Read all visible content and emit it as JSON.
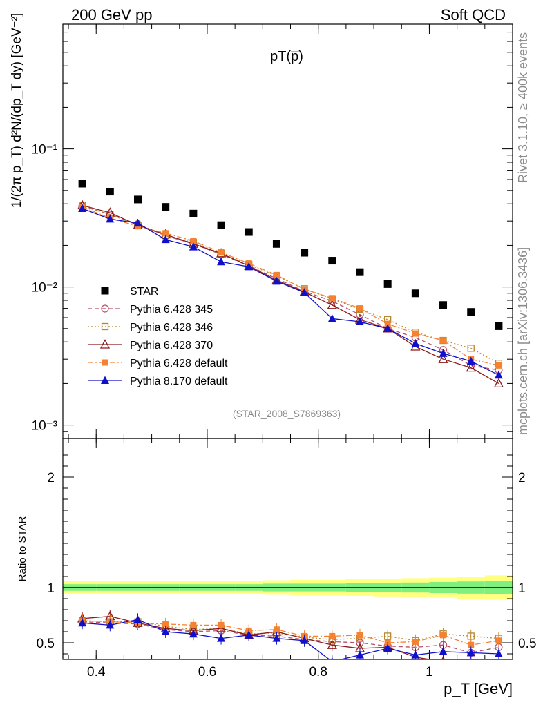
{
  "header": {
    "left": "200 GeV pp",
    "right": "Soft QCD"
  },
  "side_labels": {
    "version": "Rivet 3.1.10, ≥ 400k events",
    "source": "mcplots.cern.ch [arXiv:1306.3436]"
  },
  "chart_data": {
    "type": "scatter",
    "title": "pT(p̅)",
    "analysis_id": "(STAR_2008_S7869363)",
    "xlabel": "p_T [GeV]",
    "ylabel": "1/(2π p_T) d²N/(dp_T dy) [GeV⁻²]",
    "ratio_ylabel": "Ratio to STAR",
    "xlim": [
      0.34,
      1.15
    ],
    "ylim": [
      0.0008,
      0.8
    ],
    "yscale": "log",
    "ratio_ylim": [
      0.35,
      2.35
    ],
    "x_ticks": [
      "0.4",
      "0.6",
      "0.8",
      "1"
    ],
    "x_tick_values": [
      0.4,
      0.6,
      0.8,
      1.0
    ],
    "y_ticks": [
      "10⁻³",
      "10⁻²",
      "10⁻¹"
    ],
    "y_tick_values": [
      0.001,
      0.01,
      0.1
    ],
    "ratio_ticks": [
      "0.5",
      "1",
      "2"
    ],
    "ratio_tick_values": [
      0.5,
      1,
      2
    ],
    "x": [
      0.375,
      0.425,
      0.475,
      0.525,
      0.575,
      0.625,
      0.675,
      0.725,
      0.775,
      0.825,
      0.875,
      0.925,
      0.975,
      1.025,
      1.075,
      1.125
    ],
    "series": [
      {
        "name": "STAR",
        "color": "#000000",
        "marker": "square-filled",
        "dash": "none",
        "values": [
          0.056,
          0.049,
          0.043,
          0.038,
          0.034,
          0.028,
          0.025,
          0.0205,
          0.0177,
          0.0155,
          0.0128,
          0.0105,
          0.009,
          0.0074,
          0.0066,
          0.0052
        ]
      },
      {
        "name": "Pythia 6.428 345",
        "color": "#b5506a",
        "marker": "circle-open",
        "dash": "6,4",
        "values": [
          0.0385,
          0.0335,
          0.0285,
          0.0235,
          0.0205,
          0.0172,
          0.0142,
          0.0115,
          0.0093,
          0.0079,
          0.0063,
          0.005,
          0.0043,
          0.0035,
          0.0027,
          0.0025
        ],
        "ratio": [
          0.69,
          0.68,
          0.67,
          0.62,
          0.6,
          0.61,
          0.57,
          0.56,
          0.53,
          0.51,
          0.5,
          0.47,
          0.46,
          0.48,
          0.41,
          0.46
        ]
      },
      {
        "name": "Pythia 6.428 346",
        "color": "#b8862e",
        "marker": "square-open",
        "dash": "2,3",
        "values": [
          0.039,
          0.0335,
          0.028,
          0.0235,
          0.021,
          0.0175,
          0.0145,
          0.012,
          0.0097,
          0.0082,
          0.0069,
          0.0058,
          0.0047,
          0.0041,
          0.0036,
          0.0028
        ],
        "ratio": [
          0.7,
          0.69,
          0.69,
          0.65,
          0.62,
          0.63,
          0.58,
          0.59,
          0.55,
          0.53,
          0.54,
          0.56,
          0.52,
          0.58,
          0.56,
          0.54
        ]
      },
      {
        "name": "Pythia 6.428 370",
        "color": "#8b1a1a",
        "marker": "triangle-open",
        "dash": "none",
        "values": [
          0.039,
          0.0345,
          0.028,
          0.024,
          0.0205,
          0.0175,
          0.0142,
          0.0112,
          0.0092,
          0.0074,
          0.0058,
          0.005,
          0.0037,
          0.003,
          0.0026,
          0.002
        ],
        "ratio": [
          0.72,
          0.74,
          0.68,
          0.63,
          0.61,
          0.63,
          0.57,
          0.6,
          0.54,
          0.48,
          0.45,
          0.46,
          0.37,
          0.33,
          0.3,
          0.25
        ]
      },
      {
        "name": "Pythia 6.428 default",
        "color": "#f58231",
        "marker": "square-filled-small",
        "dash": "8,3,2,3",
        "values": [
          0.038,
          0.0315,
          0.0275,
          0.0245,
          0.0215,
          0.0178,
          0.0148,
          0.0122,
          0.0096,
          0.0083,
          0.007,
          0.0054,
          0.0046,
          0.0041,
          0.003,
          0.0027
        ],
        "ratio": [
          0.7,
          0.69,
          0.68,
          0.67,
          0.66,
          0.66,
          0.61,
          0.62,
          0.56,
          0.56,
          0.57,
          0.5,
          0.51,
          0.57,
          0.48,
          0.52
        ]
      },
      {
        "name": "Pythia 8.170 default",
        "color": "#1010cc",
        "marker": "triangle-filled",
        "dash": "none",
        "values": [
          0.037,
          0.031,
          0.029,
          0.022,
          0.0195,
          0.0152,
          0.014,
          0.011,
          0.0091,
          0.0059,
          0.0056,
          0.005,
          0.0039,
          0.0033,
          0.0029,
          0.0023
        ],
        "ratio": [
          0.68,
          0.66,
          0.71,
          0.6,
          0.58,
          0.54,
          0.57,
          0.54,
          0.52,
          0.33,
          0.39,
          0.45,
          0.39,
          0.42,
          0.41,
          0.4
        ]
      }
    ],
    "data_band": {
      "inner_halfwidth": [
        0.03,
        0.03,
        0.03,
        0.03,
        0.03,
        0.03,
        0.03,
        0.035,
        0.035,
        0.035,
        0.04,
        0.04,
        0.045,
        0.05,
        0.055,
        0.06
      ],
      "outer_halfwidth": [
        0.06,
        0.06,
        0.06,
        0.06,
        0.06,
        0.06,
        0.06,
        0.065,
        0.07,
        0.07,
        0.075,
        0.08,
        0.085,
        0.09,
        0.1,
        0.11
      ]
    },
    "legend_position": "lower-left"
  }
}
